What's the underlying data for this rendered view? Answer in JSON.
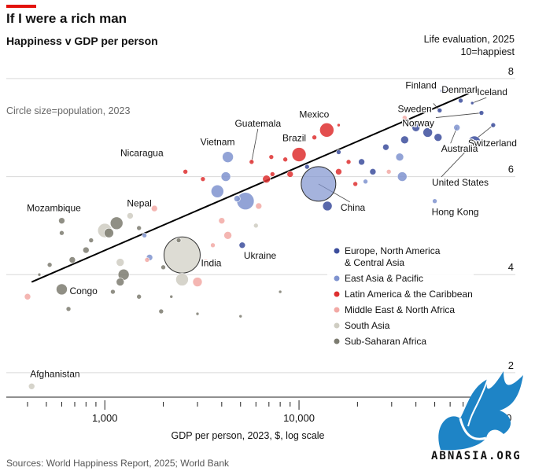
{
  "header": {
    "title": "If I were a rich man",
    "subtitle": "Happiness v GDP per person"
  },
  "source": "Sources: World Happiness Report, 2025; World Bank",
  "watermark": {
    "text": "ABNASIA.ORG",
    "icon": "dragon-logo"
  },
  "colors": {
    "europe": "#3c4d9c",
    "eastasia": "#7f93cf",
    "latam": "#de2f2f",
    "mena": "#f2a9a5",
    "southasia": "#cfcdc2",
    "africa": "#7c7b70",
    "accent": "#e3120b"
  },
  "chart_data": {
    "type": "scatter",
    "title": "If I were a rich man",
    "subtitle": "Happiness v GDP per person",
    "xlabel": "GDP per person, 2023, $, log scale",
    "ylabel": "Life evaluation, 2025",
    "ylabel2": "10=happiest",
    "size_note": "Circle size=population, 2023",
    "x_scale": "log",
    "xlim": [
      400,
      130000
    ],
    "ylim": [
      1.5,
      8.4
    ],
    "x_ticks": [
      1000,
      10000,
      100000
    ],
    "x_tick_labels": [
      "1,000",
      "10,000",
      "100,000"
    ],
    "y_ticks": [
      2,
      4,
      6,
      8
    ],
    "y_tick_labels": [
      "2",
      "4",
      "6",
      "8"
    ],
    "grid": "horizontal",
    "legend": {
      "placement": "right",
      "entries": [
        {
          "key": "europe",
          "label": "Europe, North America & Central Asia",
          "line1": "Europe, North America",
          "line2": "& Central Asia"
        },
        {
          "key": "eastasia",
          "label": "East Asia & Pacific"
        },
        {
          "key": "latam",
          "label": "Latin America & the Caribbean"
        },
        {
          "key": "mena",
          "label": "Middle East & North Africa"
        },
        {
          "key": "southasia",
          "label": "South Asia"
        },
        {
          "key": "africa",
          "label": "Sub-Saharan Africa"
        }
      ]
    },
    "trendline": {
      "x": [
        420,
        75000
      ],
      "y": [
        3.85,
        7.7
      ]
    },
    "points": [
      {
        "label": "Finland",
        "region": "europe",
        "x": 55000,
        "y": 7.75,
        "r": 3
      },
      {
        "label": "Denmark",
        "region": "europe",
        "x": 68000,
        "y": 7.55,
        "r": 3
      },
      {
        "label": "Iceland",
        "region": "europe",
        "x": 78000,
        "y": 7.5,
        "r": 2
      },
      {
        "label": "Sweden",
        "region": "europe",
        "x": 53000,
        "y": 7.35,
        "r": 3
      },
      {
        "label": "Norway",
        "region": "europe",
        "x": 87000,
        "y": 7.3,
        "r": 3
      },
      {
        "label": "Switzerland",
        "region": "europe",
        "x": 100000,
        "y": 7.05,
        "r": 3
      },
      {
        "label": "Australia",
        "region": "eastasia",
        "x": 65000,
        "y": 7.0,
        "r": 4
      },
      {
        "label": "United States",
        "region": "europe",
        "x": 80000,
        "y": 6.7,
        "r": 8
      },
      {
        "label": "Hong Kong",
        "region": "eastasia",
        "x": 50000,
        "y": 5.5,
        "r": 3
      },
      {
        "label": "Mexico",
        "region": "latam",
        "x": 13900,
        "y": 6.95,
        "r": 9
      },
      {
        "label": "Guatemala",
        "region": "latam",
        "x": 5700,
        "y": 6.3,
        "r": 3
      },
      {
        "label": "Brazil",
        "region": "latam",
        "x": 10000,
        "y": 6.45,
        "r": 9
      },
      {
        "label": "Nicaragua",
        "region": "latam",
        "x": 2600,
        "y": 6.1,
        "r": 3
      },
      {
        "label": "Vietnam",
        "region": "eastasia",
        "x": 4300,
        "y": 6.4,
        "r": 7
      },
      {
        "label": "China",
        "region": "eastasia",
        "x": 12600,
        "y": 5.85,
        "r": 22
      },
      {
        "label": "Nepal",
        "region": "southasia",
        "x": 1350,
        "y": 5.2,
        "r": 4
      },
      {
        "label": "Mozambique",
        "region": "africa",
        "x": 600,
        "y": 5.1,
        "r": 4
      },
      {
        "label": "Ukraine",
        "region": "europe",
        "x": 5100,
        "y": 4.6,
        "r": 4
      },
      {
        "label": "India",
        "region": "southasia",
        "x": 2500,
        "y": 4.4,
        "r": 23
      },
      {
        "label": "Congo",
        "region": "africa",
        "x": 600,
        "y": 3.7,
        "r": 7
      },
      {
        "label": "Afghanistan",
        "region": "southasia",
        "x": 420,
        "y": 1.72,
        "r": 4
      },
      {
        "label": "",
        "region": "europe",
        "x": 40000,
        "y": 7.0,
        "r": 5
      },
      {
        "label": "",
        "region": "europe",
        "x": 46000,
        "y": 6.9,
        "r": 6
      },
      {
        "label": "",
        "region": "europe",
        "x": 35000,
        "y": 6.75,
        "r": 5
      },
      {
        "label": "",
        "region": "europe",
        "x": 28000,
        "y": 6.6,
        "r": 4
      },
      {
        "label": "",
        "region": "europe",
        "x": 52000,
        "y": 6.8,
        "r": 5
      },
      {
        "label": "",
        "region": "europe",
        "x": 14000,
        "y": 5.4,
        "r": 6
      },
      {
        "label": "",
        "region": "europe",
        "x": 21000,
        "y": 6.3,
        "r": 4
      },
      {
        "label": "",
        "region": "europe",
        "x": 16000,
        "y": 6.5,
        "r": 3
      },
      {
        "label": "",
        "region": "europe",
        "x": 24000,
        "y": 6.1,
        "r": 4
      },
      {
        "label": "",
        "region": "europe",
        "x": 11000,
        "y": 6.2,
        "r": 3
      },
      {
        "label": "",
        "region": "eastasia",
        "x": 34000,
        "y": 6.0,
        "r": 6
      },
      {
        "label": "",
        "region": "eastasia",
        "x": 33000,
        "y": 6.4,
        "r": 5
      },
      {
        "label": "",
        "region": "eastasia",
        "x": 4200,
        "y": 6.0,
        "r": 6
      },
      {
        "label": "",
        "region": "eastasia",
        "x": 5300,
        "y": 5.5,
        "r": 11
      },
      {
        "label": "",
        "region": "eastasia",
        "x": 1700,
        "y": 4.35,
        "r": 4
      },
      {
        "label": "",
        "region": "eastasia",
        "x": 3800,
        "y": 5.7,
        "r": 8
      },
      {
        "label": "",
        "region": "eastasia",
        "x": 4800,
        "y": 5.55,
        "r": 4
      },
      {
        "label": "",
        "region": "eastasia",
        "x": 1600,
        "y": 4.8,
        "r": 3
      },
      {
        "label": "",
        "region": "eastasia",
        "x": 22000,
        "y": 5.9,
        "r": 3
      },
      {
        "label": "",
        "region": "latam",
        "x": 16000,
        "y": 6.1,
        "r": 4
      },
      {
        "label": "",
        "region": "latam",
        "x": 16000,
        "y": 7.05,
        "r": 2
      },
      {
        "label": "",
        "region": "latam",
        "x": 12000,
        "y": 6.8,
        "r": 3
      },
      {
        "label": "",
        "region": "latam",
        "x": 8500,
        "y": 6.35,
        "r": 3
      },
      {
        "label": "",
        "region": "latam",
        "x": 7300,
        "y": 6.05,
        "r": 3
      },
      {
        "label": "",
        "region": "latam",
        "x": 6800,
        "y": 5.95,
        "r": 5
      },
      {
        "label": "",
        "region": "latam",
        "x": 9000,
        "y": 6.05,
        "r": 4
      },
      {
        "label": "",
        "region": "latam",
        "x": 3200,
        "y": 5.95,
        "r": 3
      },
      {
        "label": "",
        "region": "latam",
        "x": 18000,
        "y": 6.3,
        "r": 3
      },
      {
        "label": "",
        "region": "latam",
        "x": 7200,
        "y": 6.4,
        "r": 3
      },
      {
        "label": "",
        "region": "latam",
        "x": 19500,
        "y": 5.85,
        "r": 3
      },
      {
        "label": "",
        "region": "mena",
        "x": 6200,
        "y": 5.4,
        "r": 4
      },
      {
        "label": "",
        "region": "mena",
        "x": 4000,
        "y": 5.1,
        "r": 4
      },
      {
        "label": "",
        "region": "mena",
        "x": 4300,
        "y": 4.8,
        "r": 5
      },
      {
        "label": "",
        "region": "mena",
        "x": 3600,
        "y": 4.6,
        "r": 3
      },
      {
        "label": "",
        "region": "mena",
        "x": 3300,
        "y": 4.25,
        "r": 4
      },
      {
        "label": "",
        "region": "mena",
        "x": 3000,
        "y": 3.85,
        "r": 6
      },
      {
        "label": "",
        "region": "mena",
        "x": 1800,
        "y": 5.35,
        "r": 4
      },
      {
        "label": "",
        "region": "mena",
        "x": 400,
        "y": 3.55,
        "r": 4
      },
      {
        "label": "",
        "region": "mena",
        "x": 1650,
        "y": 4.3,
        "r": 3
      },
      {
        "label": "",
        "region": "mena",
        "x": 35000,
        "y": 7.2,
        "r": 3
      },
      {
        "label": "",
        "region": "mena",
        "x": 29000,
        "y": 6.1,
        "r": 3
      },
      {
        "label": "",
        "region": "southasia",
        "x": 1000,
        "y": 4.9,
        "r": 9
      },
      {
        "label": "",
        "region": "southasia",
        "x": 2500,
        "y": 3.9,
        "r": 8
      },
      {
        "label": "",
        "region": "southasia",
        "x": 1200,
        "y": 4.25,
        "r": 5
      },
      {
        "label": "",
        "region": "southasia",
        "x": 6000,
        "y": 5.0,
        "r": 3
      },
      {
        "label": "",
        "region": "africa",
        "x": 1150,
        "y": 5.05,
        "r": 8
      },
      {
        "label": "",
        "region": "africa",
        "x": 1050,
        "y": 4.85,
        "r": 6
      },
      {
        "label": "",
        "region": "africa",
        "x": 850,
        "y": 4.7,
        "r": 3
      },
      {
        "label": "",
        "region": "africa",
        "x": 800,
        "y": 4.5,
        "r": 4
      },
      {
        "label": "",
        "region": "africa",
        "x": 680,
        "y": 4.3,
        "r": 4
      },
      {
        "label": "",
        "region": "africa",
        "x": 520,
        "y": 4.2,
        "r": 3
      },
      {
        "label": "",
        "region": "africa",
        "x": 600,
        "y": 4.85,
        "r": 3
      },
      {
        "label": "",
        "region": "africa",
        "x": 1250,
        "y": 4.0,
        "r": 7
      },
      {
        "label": "",
        "region": "africa",
        "x": 1200,
        "y": 3.85,
        "r": 5
      },
      {
        "label": "",
        "region": "africa",
        "x": 1500,
        "y": 4.95,
        "r": 3
      },
      {
        "label": "",
        "region": "africa",
        "x": 1650,
        "y": 5.4,
        "r": 2
      },
      {
        "label": "",
        "region": "africa",
        "x": 1500,
        "y": 3.55,
        "r": 3
      },
      {
        "label": "",
        "region": "africa",
        "x": 2200,
        "y": 3.55,
        "r": 2
      },
      {
        "label": "",
        "region": "africa",
        "x": 2000,
        "y": 4.15,
        "r": 3
      },
      {
        "label": "",
        "region": "africa",
        "x": 1950,
        "y": 3.25,
        "r": 3
      },
      {
        "label": "",
        "region": "africa",
        "x": 2400,
        "y": 4.7,
        "r": 3
      },
      {
        "label": "",
        "region": "africa",
        "x": 650,
        "y": 3.3,
        "r": 3
      },
      {
        "label": "",
        "region": "africa",
        "x": 1100,
        "y": 3.65,
        "r": 3
      },
      {
        "label": "",
        "region": "africa",
        "x": 460,
        "y": 4.0,
        "r": 2
      },
      {
        "label": "",
        "region": "africa",
        "x": 5000,
        "y": 3.15,
        "r": 2
      },
      {
        "label": "",
        "region": "africa",
        "x": 8000,
        "y": 3.65,
        "r": 2
      },
      {
        "label": "",
        "region": "africa",
        "x": 3000,
        "y": 3.2,
        "r": 2
      }
    ],
    "annotations": [
      {
        "text": "Finland",
        "point": "Finland",
        "anchor": "end",
        "dx": -8,
        "dy": -3,
        "leader": false
      },
      {
        "text": "Denmark",
        "point": "Denmark",
        "anchor": "middle",
        "dx": 0,
        "dy": -10,
        "leader": false
      },
      {
        "text": "Iceland",
        "point": "Iceland",
        "anchor": "start",
        "dx": 6,
        "dy": -10,
        "leader": true
      },
      {
        "text": "Sweden",
        "point": "Sweden",
        "anchor": "end",
        "dx": -10,
        "dy": 2,
        "leader": true
      },
      {
        "text": "Norway",
        "point": "Norway",
        "anchor": "end",
        "dx": -60,
        "dy": 17,
        "leader": true
      },
      {
        "text": "Switzerland",
        "point": "Switzerland",
        "anchor": "start",
        "dx": -32,
        "dy": 27,
        "leader": true
      },
      {
        "text": "Australia",
        "point": "Australia",
        "anchor": "start",
        "dx": -20,
        "dy": 31,
        "leader": true
      },
      {
        "text": "United States",
        "point": "United States",
        "anchor": "start",
        "dx": -54,
        "dy": 55,
        "leader": true
      },
      {
        "text": "Hong Kong",
        "point": "Hong Kong",
        "anchor": "start",
        "dx": -4,
        "dy": 18,
        "leader": false
      },
      {
        "text": "Mexico",
        "point": "Mexico",
        "anchor": "middle",
        "dx": -16,
        "dy": -16,
        "leader": false
      },
      {
        "text": "Guatemala",
        "point": "Guatemala",
        "anchor": "middle",
        "dx": 8,
        "dy": -45,
        "leader": true
      },
      {
        "text": "Brazil",
        "point": "Brazil",
        "anchor": "middle",
        "dx": -6,
        "dy": -17,
        "leader": false
      },
      {
        "text": "Nicaragua",
        "point": "Nicaragua",
        "anchor": "end",
        "dx": -28,
        "dy": -20,
        "leader": false
      },
      {
        "text": "Vietnam",
        "point": "Vietnam",
        "anchor": "middle",
        "dx": -13,
        "dy": -15,
        "leader": false
      },
      {
        "text": "China",
        "point": "China",
        "anchor": "start",
        "dx": 28,
        "dy": 34,
        "leader": true
      },
      {
        "text": "Nepal",
        "point": "Nepal",
        "anchor": "start",
        "dx": -4,
        "dy": -12,
        "leader": false
      },
      {
        "text": "Mozambique",
        "point": "Mozambique",
        "anchor": "middle",
        "dx": -10,
        "dy": -12,
        "leader": false
      },
      {
        "text": "Ukraine",
        "point": "Ukraine",
        "anchor": "start",
        "dx": 2,
        "dy": 17,
        "leader": false
      },
      {
        "text": "India",
        "point": "India",
        "anchor": "start",
        "dx": 24,
        "dy": 14,
        "leader": false
      },
      {
        "text": "Congo",
        "point": "Congo",
        "anchor": "start",
        "dx": 10,
        "dy": 6,
        "leader": false
      },
      {
        "text": "Afghanistan",
        "point": "Afghanistan",
        "anchor": "start",
        "dx": -2,
        "dy": -12,
        "leader": false
      }
    ]
  }
}
